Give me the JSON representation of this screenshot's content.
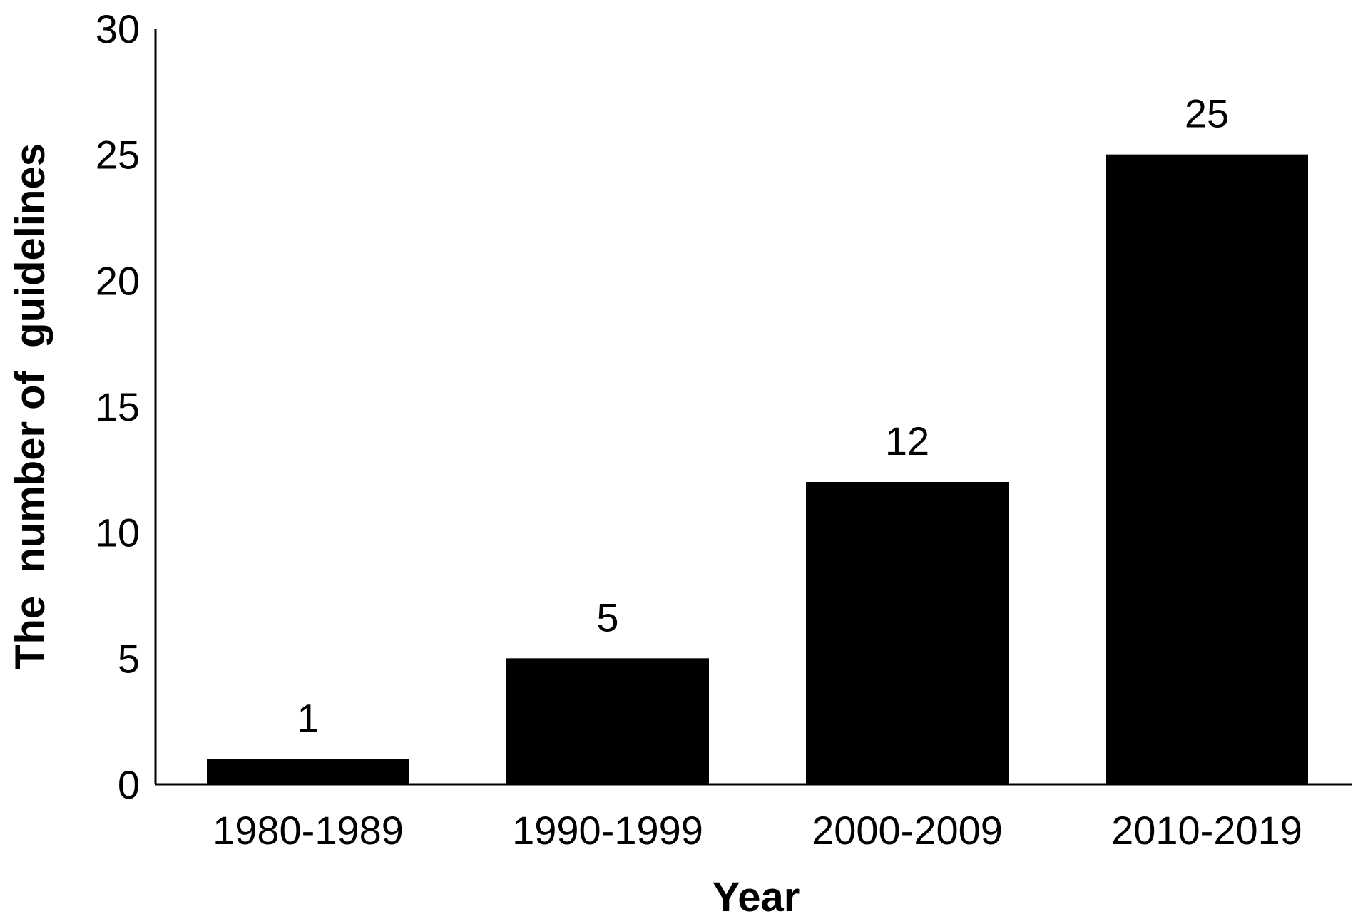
{
  "chart_data": {
    "type": "bar",
    "categories": [
      "1980-1989",
      "1990-1999",
      "2000-2009",
      "2010-2019"
    ],
    "values": [
      1,
      5,
      12,
      25
    ],
    "data_labels": [
      "1",
      "5",
      "12",
      "25"
    ],
    "title": "",
    "xlabel": "Year",
    "ylabel": "The  number of  guidelines",
    "ylim": [
      0,
      30
    ],
    "yticks": [
      0,
      5,
      10,
      15,
      20,
      25,
      30
    ],
    "ytick_labels": [
      "0",
      "5",
      "10",
      "15",
      "20",
      "25",
      "30"
    ],
    "grid": false,
    "legend": "none",
    "bar_color": "#000000",
    "axis_color": "#000000"
  }
}
